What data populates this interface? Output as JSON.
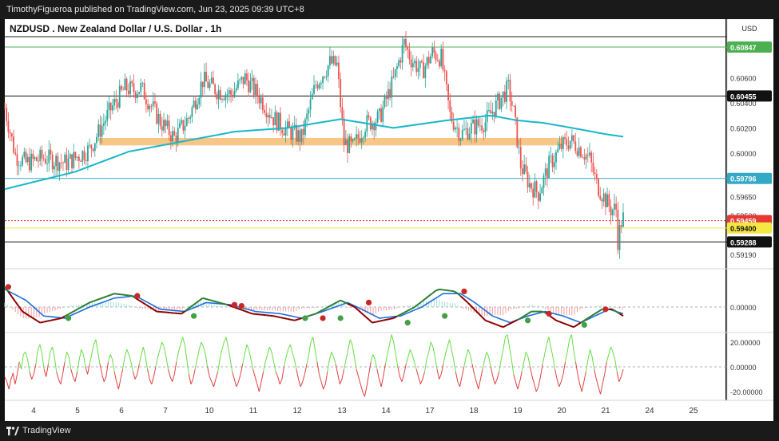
{
  "header": {
    "published_text": "TimothyFigueroa published on TradingView.com, Jun 23, 2025 09:39 UTC+8"
  },
  "footer": {
    "brand": "TradingView"
  },
  "colors": {
    "background": "#ffffff",
    "candle_up": "#26a69a",
    "candle_down": "#ef5350",
    "ma_line": "#19b6c9",
    "support_zone": "#f7c07a",
    "green_level": "#4caf50",
    "cyan_level": "#33a9c6",
    "red_level": "#e53935",
    "yellow_level": "#f5e642",
    "macd_fast": "#2e7d32",
    "macd_slow": "#1e6fd9",
    "macd_dark_red": "#8b0000",
    "osc_green": "#66dd44",
    "osc_red": "#e04040"
  },
  "chart_data": {
    "type": "candlestick",
    "title": "NZDUSD . New Zealand Dollar / U.S. Dollar . 1h",
    "currency": "USD",
    "x_tick_labels": [
      "4",
      "5",
      "6",
      "7",
      "10",
      "11",
      "12",
      "13",
      "14",
      "17",
      "18",
      "19",
      "20",
      "21",
      "24",
      "25"
    ],
    "price_axis": {
      "ylim": [
        0.5908,
        0.6107
      ],
      "tick_labels": [
        "0.60600",
        "0.60400",
        "0.60200",
        "0.60000",
        "0.59650",
        "0.59500",
        "0.59190"
      ]
    },
    "horizontal_levels": [
      {
        "value": 0.60847,
        "label": "0.60847",
        "style": "green"
      },
      {
        "value": 0.60455,
        "label": "0.60455",
        "style": "black"
      },
      {
        "value": 0.59796,
        "label": "0.59796",
        "style": "cyan"
      },
      {
        "value": 0.59459,
        "label": "0.59459",
        "style": "red"
      },
      {
        "value": 0.594,
        "label": "0.59400",
        "style": "yellow"
      },
      {
        "value": 0.59288,
        "label": "0.59288",
        "style": "black"
      }
    ],
    "support_zone": {
      "from": 0.6006,
      "to": 0.6012
    },
    "price_path": [
      [
        0,
        0.6036
      ],
      [
        6,
        0.5998
      ],
      [
        12,
        0.5992
      ],
      [
        22,
        0.5996
      ],
      [
        35,
        0.5992
      ],
      [
        48,
        0.6003
      ],
      [
        60,
        0.6035
      ],
      [
        68,
        0.6052
      ],
      [
        73,
        0.605
      ],
      [
        77,
        0.6052
      ],
      [
        82,
        0.604
      ],
      [
        88,
        0.6025
      ],
      [
        96,
        0.6012
      ],
      [
        104,
        0.6028
      ],
      [
        112,
        0.6058
      ],
      [
        120,
        0.605
      ],
      [
        128,
        0.6047
      ],
      [
        136,
        0.606
      ],
      [
        144,
        0.6045
      ],
      [
        152,
        0.6028
      ],
      [
        160,
        0.6018
      ],
      [
        168,
        0.6012
      ],
      [
        176,
        0.6055
      ],
      [
        184,
        0.6072
      ],
      [
        188,
        0.607
      ],
      [
        192,
        0.6008
      ],
      [
        197,
        0.6004
      ],
      [
        204,
        0.6023
      ],
      [
        212,
        0.6028
      ],
      [
        220,
        0.6058
      ],
      [
        226,
        0.6088
      ],
      [
        230,
        0.6075
      ],
      [
        236,
        0.6065
      ],
      [
        242,
        0.608
      ],
      [
        247,
        0.6076
      ],
      [
        252,
        0.603
      ],
      [
        258,
        0.6015
      ],
      [
        264,
        0.602
      ],
      [
        272,
        0.6025
      ],
      [
        280,
        0.6042
      ],
      [
        285,
        0.6052
      ],
      [
        288,
        0.6032
      ],
      [
        292,
        0.599
      ],
      [
        297,
        0.5975
      ],
      [
        302,
        0.5968
      ],
      [
        308,
        0.599
      ],
      [
        315,
        0.6005
      ],
      [
        320,
        0.601
      ],
      [
        326,
        0.6003
      ],
      [
        331,
        0.5995
      ],
      [
        335,
        0.5975
      ],
      [
        339,
        0.5965
      ],
      [
        343,
        0.5955
      ],
      [
        346,
        0.5955
      ],
      [
        347,
        0.593
      ],
      [
        349,
        0.5945
      ],
      [
        350,
        0.5948
      ]
    ],
    "moving_average_path": [
      [
        0,
        0.5971
      ],
      [
        40,
        0.5985
      ],
      [
        70,
        0.6001
      ],
      [
        100,
        0.6009
      ],
      [
        130,
        0.6017
      ],
      [
        160,
        0.602
      ],
      [
        190,
        0.6027
      ],
      [
        220,
        0.602
      ],
      [
        250,
        0.6026
      ],
      [
        275,
        0.603
      ],
      [
        290,
        0.6026
      ],
      [
        305,
        0.6024
      ],
      [
        325,
        0.6019
      ],
      [
        340,
        0.6015
      ],
      [
        350,
        0.6013
      ]
    ],
    "macd": {
      "zero_label": "0.00000",
      "fast_path": [
        [
          0,
          0.9
        ],
        [
          10,
          -0.2
        ],
        [
          20,
          -0.7
        ],
        [
          32,
          -0.5
        ],
        [
          48,
          0.2
        ],
        [
          62,
          0.6
        ],
        [
          72,
          0.5
        ],
        [
          86,
          -0.2
        ],
        [
          100,
          -0.3
        ],
        [
          112,
          0.4
        ],
        [
          126,
          0.1
        ],
        [
          140,
          -0.3
        ],
        [
          152,
          -0.4
        ],
        [
          164,
          -0.6
        ],
        [
          176,
          -0.3
        ],
        [
          190,
          0.3
        ],
        [
          198,
          0.0
        ],
        [
          208,
          -0.7
        ],
        [
          220,
          -0.5
        ],
        [
          232,
          0.0
        ],
        [
          245,
          0.8
        ],
        [
          255,
          0.7
        ],
        [
          262,
          0.2
        ],
        [
          272,
          -0.6
        ],
        [
          282,
          -0.9
        ],
        [
          292,
          -0.5
        ],
        [
          298,
          -0.2
        ],
        [
          305,
          -0.2
        ],
        [
          312,
          -0.6
        ],
        [
          322,
          -0.9
        ],
        [
          330,
          -0.5
        ],
        [
          338,
          -0.1
        ],
        [
          344,
          -0.1
        ],
        [
          350,
          -0.4
        ]
      ],
      "slow_path": [
        [
          0,
          0.8
        ],
        [
          12,
          0.3
        ],
        [
          22,
          -0.4
        ],
        [
          34,
          -0.5
        ],
        [
          48,
          0.0
        ],
        [
          62,
          0.4
        ],
        [
          74,
          0.5
        ],
        [
          88,
          -0.1
        ],
        [
          102,
          -0.2
        ],
        [
          114,
          0.2
        ],
        [
          128,
          0.1
        ],
        [
          142,
          -0.2
        ],
        [
          156,
          -0.3
        ],
        [
          168,
          -0.5
        ],
        [
          180,
          -0.2
        ],
        [
          194,
          0.2
        ],
        [
          202,
          -0.1
        ],
        [
          212,
          -0.5
        ],
        [
          224,
          -0.4
        ],
        [
          236,
          0.0
        ],
        [
          248,
          0.6
        ],
        [
          258,
          0.6
        ],
        [
          266,
          0.2
        ],
        [
          276,
          -0.4
        ],
        [
          286,
          -0.7
        ],
        [
          296,
          -0.4
        ],
        [
          306,
          -0.2
        ],
        [
          316,
          -0.4
        ],
        [
          326,
          -0.7
        ],
        [
          334,
          -0.4
        ],
        [
          342,
          -0.1
        ],
        [
          350,
          -0.3
        ]
      ],
      "cross_points": [
        [
          2,
          0.9,
          "red"
        ],
        [
          36,
          -0.5,
          "green"
        ],
        [
          75,
          0.5,
          "red"
        ],
        [
          107,
          -0.4,
          "green"
        ],
        [
          130,
          0.1,
          "red"
        ],
        [
          134,
          0.05,
          "red"
        ],
        [
          170,
          -0.5,
          "green"
        ],
        [
          180,
          -0.5,
          "red"
        ],
        [
          190,
          -0.5,
          "green"
        ],
        [
          206,
          0.2,
          "red"
        ],
        [
          228,
          -0.7,
          "green"
        ],
        [
          249,
          -0.4,
          "green"
        ],
        [
          260,
          0.7,
          "red"
        ],
        [
          296,
          -0.6,
          "green"
        ],
        [
          308,
          -0.3,
          "red"
        ],
        [
          328,
          -0.8,
          "green"
        ],
        [
          340,
          -0.1,
          "red"
        ]
      ]
    },
    "oscillator": {
      "tick_labels": [
        "20.00000",
        "0.00000",
        "-20.00000"
      ],
      "ylim": [
        -27,
        27
      ],
      "values": [
        -8,
        -12,
        -18,
        -10,
        -5,
        -14,
        -6,
        4,
        -2,
        10,
        12,
        6,
        -4,
        -10,
        -6,
        2,
        14,
        18,
        10,
        -2,
        -8,
        2,
        12,
        16,
        8,
        -4,
        -10,
        -14,
        -6,
        4,
        12,
        8,
        -2,
        -8,
        -12,
        -4,
        6,
        14,
        10,
        0,
        -6,
        2,
        10,
        18,
        22,
        12,
        2,
        -6,
        -12,
        -8,
        4,
        10,
        6,
        -4,
        -12,
        -18,
        -10,
        -2,
        8,
        14,
        10,
        4,
        -4,
        -10,
        -6,
        2,
        10,
        16,
        8,
        -2,
        -10,
        -14,
        -8,
        0,
        8,
        14,
        20,
        16,
        8,
        -2,
        -8,
        -12,
        -6,
        4,
        12,
        18,
        24,
        18,
        6,
        -6,
        -14,
        -10,
        -2,
        6,
        14,
        20,
        16,
        10,
        0,
        -8,
        -12,
        -16,
        -10,
        -4,
        6,
        14,
        20,
        24,
        16,
        6,
        -4,
        -10,
        -16,
        -12,
        -6,
        2,
        10,
        18,
        14,
        6,
        -2,
        -8,
        -14,
        -20,
        -12,
        -4,
        4,
        10,
        16,
        12,
        4,
        -4,
        -8,
        -14,
        -10,
        0,
        8,
        14,
        18,
        12,
        6,
        -2,
        -10,
        -16,
        -12,
        -6,
        2,
        10,
        20,
        24,
        14,
        4,
        -6,
        -12,
        -18,
        -14,
        -4,
        6,
        12,
        8,
        2,
        -6,
        -14,
        -10,
        -2,
        6,
        14,
        22,
        18,
        8,
        -2,
        -8,
        -14,
        -20,
        -24,
        -16,
        -6,
        4,
        10,
        6,
        -2,
        -10,
        -16,
        -8,
        2,
        10,
        18,
        26,
        20,
        10,
        0,
        -8,
        -12,
        -6,
        2,
        8,
        14,
        10,
        4,
        -2,
        -8,
        -14,
        -10,
        -4,
        6,
        12,
        20,
        16,
        8,
        -2,
        -10,
        -6,
        2,
        10,
        16,
        22,
        14,
        6,
        -4,
        -12,
        -16,
        -8,
        0,
        8,
        14,
        10,
        2,
        -6,
        -12,
        -18,
        -10,
        -2,
        6,
        12,
        8,
        0,
        -8,
        -14,
        -10,
        -4,
        6,
        14,
        24,
        26,
        16,
        6,
        -6,
        -12,
        -18,
        -12,
        -4,
        4,
        12,
        8,
        0,
        -8,
        -14,
        -20,
        -16,
        -8,
        2,
        10,
        18,
        24,
        16,
        8,
        -2,
        -10,
        -16,
        -12,
        -6,
        4,
        12,
        22,
        26,
        14,
        4,
        -6,
        -14,
        -20,
        -12,
        -4,
        6,
        14,
        8,
        -2,
        -10,
        -16,
        -22,
        -14,
        -6,
        4,
        10,
        16,
        12,
        6,
        -4,
        -12,
        -8,
        -2
      ]
    }
  }
}
